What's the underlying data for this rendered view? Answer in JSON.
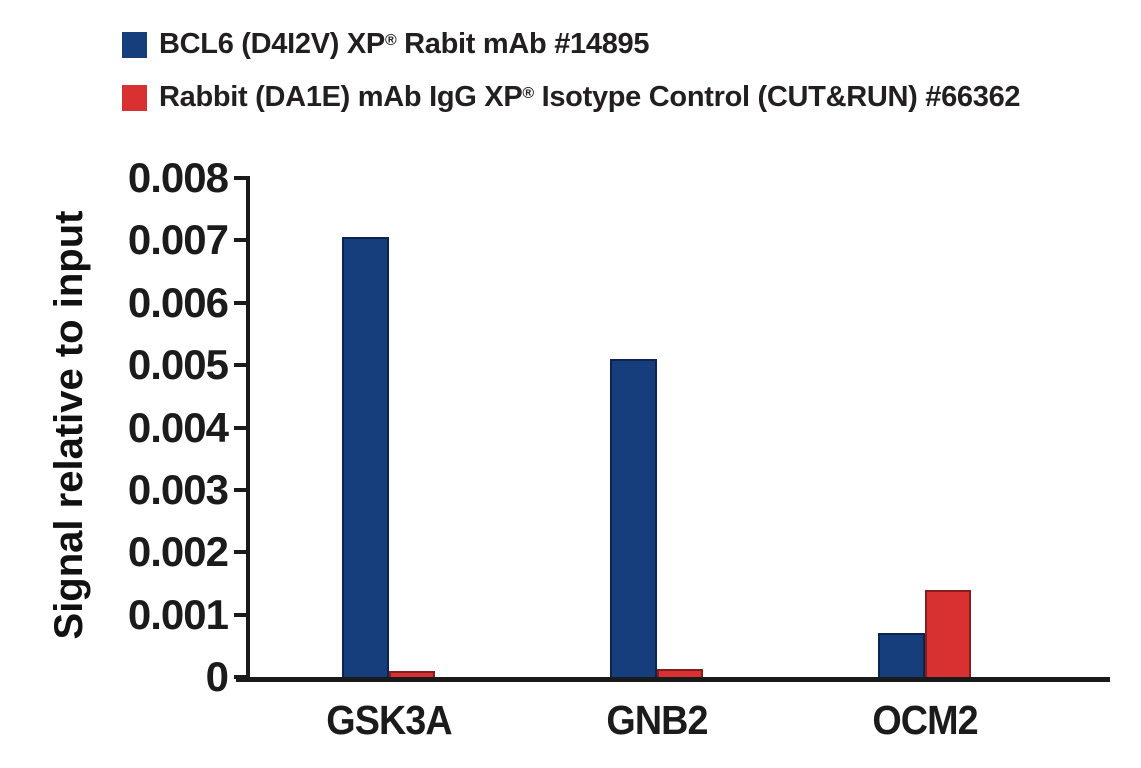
{
  "legend": {
    "items": [
      {
        "pre": "BCL6 (D4I2V) XP",
        "sup": "®",
        "post": " Rabit mAb #14895",
        "color": "#163d7c"
      },
      {
        "pre": "Rabbit (DA1E) mAb IgG XP",
        "sup": "®",
        "post": " Isotype Control (CUT&RUN) #66362",
        "color": "#d93032"
      }
    ]
  },
  "chart_data": {
    "type": "bar",
    "categories": [
      "GSK3A",
      "GNB2",
      "OCM2"
    ],
    "series": [
      {
        "name": "BCL6 (D4I2V) XP® Rabit mAb #14895",
        "color": "#163d7c",
        "values": [
          0.00705,
          0.0051,
          0.0007
        ]
      },
      {
        "name": "Rabbit (DA1E) mAb IgG XP® Isotype Control (CUT&RUN) #66362",
        "color": "#d93032",
        "values": [
          0.0001,
          0.00013,
          0.0014
        ]
      }
    ],
    "title": "",
    "xlabel": "",
    "ylabel": "Signal relative to input",
    "ylim": [
      0,
      0.008
    ],
    "yticks": [
      0,
      0.001,
      0.002,
      0.003,
      0.004,
      0.005,
      0.006,
      0.007,
      0.008
    ],
    "ytick_labels": [
      "0",
      "0.001",
      "0.002",
      "0.003",
      "0.004",
      "0.005",
      "0.006",
      "0.007",
      "0.008"
    ],
    "grid": false,
    "legend_position": "top-left",
    "bar_outline_color": "#1a1a1a",
    "axis_color": "#1a1a1a"
  }
}
